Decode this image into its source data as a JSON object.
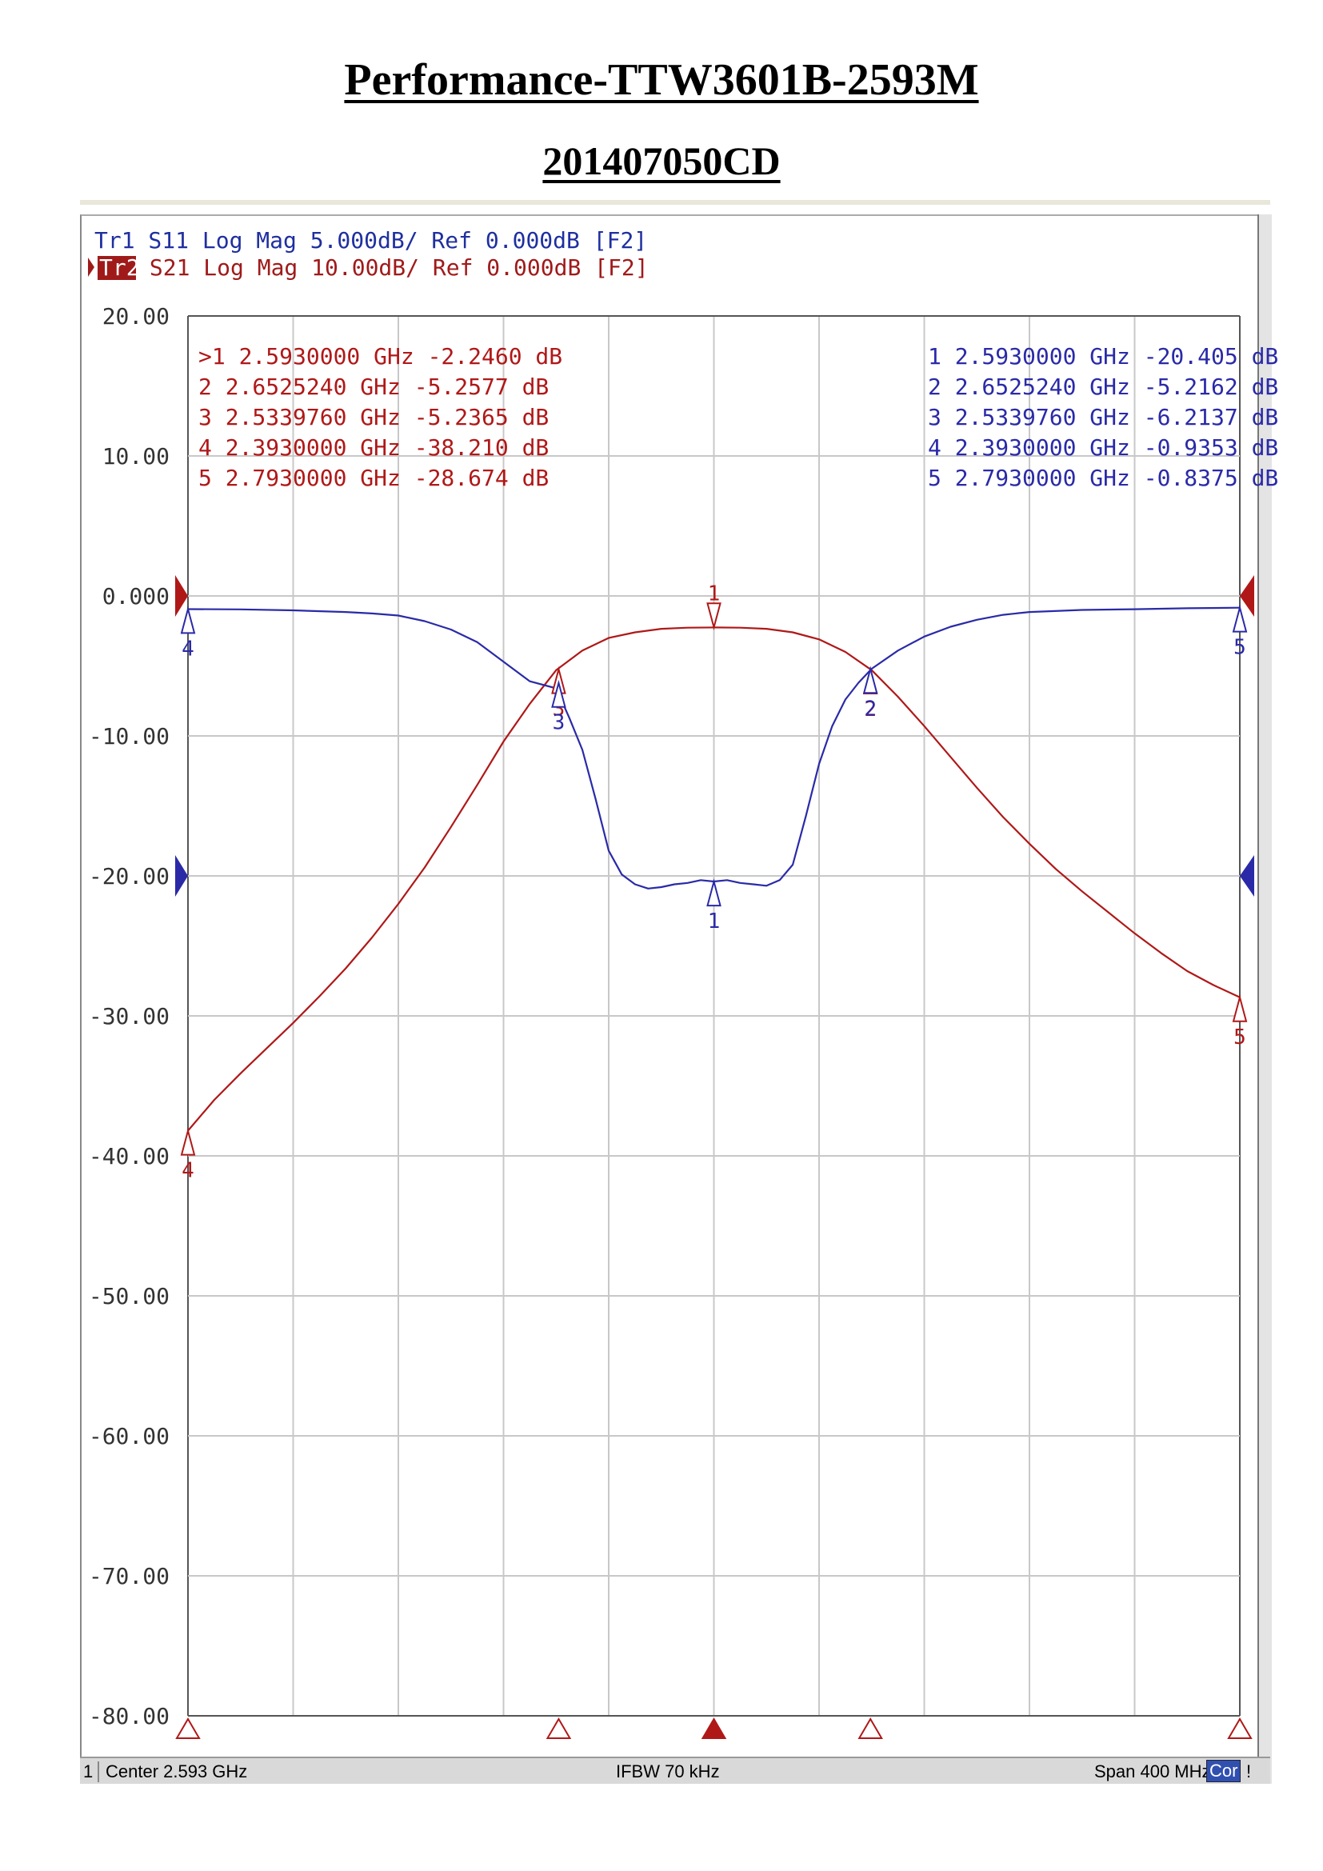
{
  "page": {
    "title": "Performance-TTW3601B-2593M",
    "subtitle": "201407050CD"
  },
  "trace_header": {
    "tr1": "Tr1 S11 Log Mag 5.000dB/ Ref 0.000dB [F2]",
    "tr2_label": "Tr2",
    "tr2_rest": " S21 Log Mag 10.00dB/ Ref 0.000dB [F2]"
  },
  "status_bar": {
    "channel": "1",
    "center": "Center 2.593 GHz",
    "ifbw": "IFBW 70 kHz",
    "span": "Span 400 MHz",
    "cor": "Cor",
    "excl": "!"
  },
  "colors": {
    "s11": "#2a2aa8",
    "s21": "#b01818",
    "grid": "#c8c8c8",
    "axis": "#555555",
    "tr1_text": "#1f2fa0",
    "tr2_text": "#a01a1a"
  },
  "chart_data": {
    "type": "line",
    "x_unit": "GHz",
    "xlim": [
      2.393,
      2.793
    ],
    "ylim": [
      -80,
      20
    ],
    "y_ticks": [
      "20.00",
      "10.00",
      "0.000",
      "-10.00",
      "-20.00",
      "-30.00",
      "-40.00",
      "-50.00",
      "-60.00",
      "-70.00",
      "-80.00"
    ],
    "grid": true,
    "x_divisions": 10,
    "series": [
      {
        "name": "S21",
        "points": [
          [
            2.393,
            -38.2
          ],
          [
            2.403,
            -36.0
          ],
          [
            2.413,
            -34.1
          ],
          [
            2.423,
            -32.3
          ],
          [
            2.433,
            -30.5
          ],
          [
            2.443,
            -28.6
          ],
          [
            2.453,
            -26.6
          ],
          [
            2.463,
            -24.4
          ],
          [
            2.473,
            -22.0
          ],
          [
            2.483,
            -19.4
          ],
          [
            2.493,
            -16.5
          ],
          [
            2.503,
            -13.5
          ],
          [
            2.513,
            -10.4
          ],
          [
            2.523,
            -7.7
          ],
          [
            2.533,
            -5.3
          ],
          [
            2.543,
            -3.9
          ],
          [
            2.553,
            -3.0
          ],
          [
            2.563,
            -2.6
          ],
          [
            2.573,
            -2.35
          ],
          [
            2.583,
            -2.27
          ],
          [
            2.593,
            -2.25
          ],
          [
            2.603,
            -2.27
          ],
          [
            2.613,
            -2.35
          ],
          [
            2.623,
            -2.6
          ],
          [
            2.633,
            -3.1
          ],
          [
            2.643,
            -4.0
          ],
          [
            2.653,
            -5.3
          ],
          [
            2.663,
            -7.2
          ],
          [
            2.673,
            -9.3
          ],
          [
            2.683,
            -11.5
          ],
          [
            2.693,
            -13.7
          ],
          [
            2.703,
            -15.8
          ],
          [
            2.713,
            -17.7
          ],
          [
            2.723,
            -19.5
          ],
          [
            2.733,
            -21.1
          ],
          [
            2.743,
            -22.6
          ],
          [
            2.753,
            -24.1
          ],
          [
            2.763,
            -25.5
          ],
          [
            2.773,
            -26.8
          ],
          [
            2.783,
            -27.8
          ],
          [
            2.793,
            -28.67
          ]
        ]
      },
      {
        "name": "S11",
        "points": [
          [
            2.393,
            -0.94
          ],
          [
            2.413,
            -0.96
          ],
          [
            2.433,
            -1.03
          ],
          [
            2.453,
            -1.15
          ],
          [
            2.463,
            -1.25
          ],
          [
            2.473,
            -1.4
          ],
          [
            2.483,
            -1.8
          ],
          [
            2.493,
            -2.4
          ],
          [
            2.503,
            -3.3
          ],
          [
            2.513,
            -4.7
          ],
          [
            2.523,
            -6.1
          ],
          [
            2.533,
            -6.6
          ],
          [
            2.538,
            -8.7
          ],
          [
            2.543,
            -11.0
          ],
          [
            2.548,
            -14.5
          ],
          [
            2.553,
            -18.2
          ],
          [
            2.558,
            -19.9
          ],
          [
            2.563,
            -20.6
          ],
          [
            2.568,
            -20.9
          ],
          [
            2.573,
            -20.8
          ],
          [
            2.578,
            -20.6
          ],
          [
            2.583,
            -20.5
          ],
          [
            2.588,
            -20.3
          ],
          [
            2.593,
            -20.4
          ],
          [
            2.598,
            -20.3
          ],
          [
            2.603,
            -20.5
          ],
          [
            2.608,
            -20.6
          ],
          [
            2.613,
            -20.7
          ],
          [
            2.618,
            -20.3
          ],
          [
            2.623,
            -19.2
          ],
          [
            2.628,
            -15.7
          ],
          [
            2.633,
            -12.0
          ],
          [
            2.638,
            -9.3
          ],
          [
            2.643,
            -7.4
          ],
          [
            2.648,
            -6.2
          ],
          [
            2.653,
            -5.2
          ],
          [
            2.663,
            -3.9
          ],
          [
            2.673,
            -2.9
          ],
          [
            2.683,
            -2.2
          ],
          [
            2.693,
            -1.7
          ],
          [
            2.703,
            -1.35
          ],
          [
            2.713,
            -1.15
          ],
          [
            2.733,
            -1.0
          ],
          [
            2.753,
            -0.95
          ],
          [
            2.773,
            -0.88
          ],
          [
            2.793,
            -0.84
          ]
        ]
      }
    ],
    "markers_s21": [
      {
        "id": "1",
        "freq": 2.593,
        "value": -2.246,
        "text": ">1  2.5930000 GHz -2.2460 dB"
      },
      {
        "id": "2",
        "freq": 2.652524,
        "value": -5.2577,
        "text": " 2  2.6525240 GHz -5.2577 dB"
      },
      {
        "id": "3",
        "freq": 2.533976,
        "value": -5.2365,
        "text": " 3  2.5339760 GHz -5.2365 dB"
      },
      {
        "id": "4",
        "freq": 2.393,
        "value": -38.21,
        "text": " 4  2.3930000 GHz -38.210 dB"
      },
      {
        "id": "5",
        "freq": 2.793,
        "value": -28.674,
        "text": " 5  2.7930000 GHz -28.674 dB"
      }
    ],
    "markers_s11": [
      {
        "id": "1",
        "freq": 2.593,
        "value": -20.405,
        "text": "1  2.5930000 GHz -20.405 dB"
      },
      {
        "id": "2",
        "freq": 2.652524,
        "value": -5.2162,
        "text": "2  2.6525240 GHz -5.2162 dB"
      },
      {
        "id": "3",
        "freq": 2.533976,
        "value": -6.2137,
        "text": "3  2.5339760 GHz -6.2137 dB"
      },
      {
        "id": "4",
        "freq": 2.393,
        "value": -0.9353,
        "text": "4  2.3930000 GHz -0.9353 dB"
      },
      {
        "id": "5",
        "freq": 2.793,
        "value": -0.8375,
        "text": "5  2.7930000 GHz -0.8375 dB"
      }
    ]
  }
}
